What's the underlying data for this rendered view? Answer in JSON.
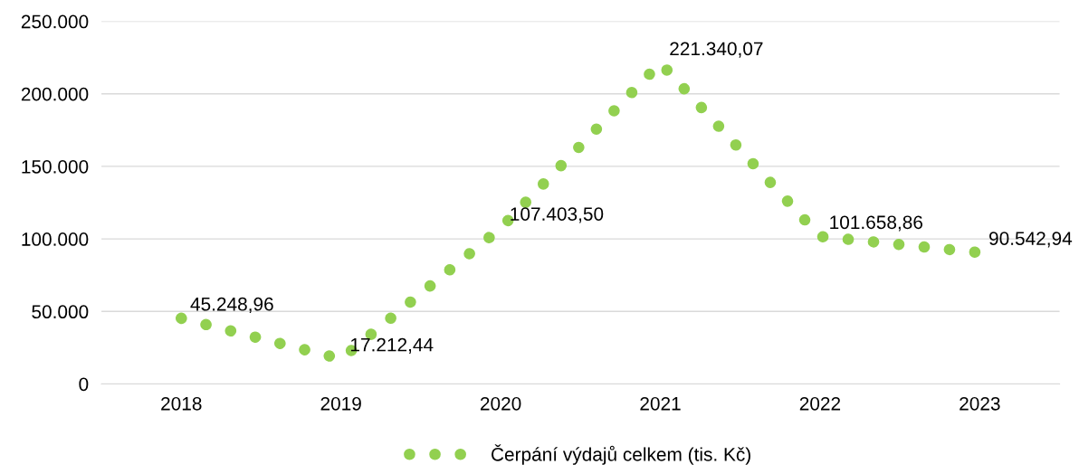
{
  "chart_data": {
    "type": "line",
    "categories": [
      "2018",
      "2019",
      "2020",
      "2021",
      "2022",
      "2023"
    ],
    "series": [
      {
        "name": "Čerpání výdajů celkem (tis. Kč)",
        "color": "#92d050",
        "values": [
          45248.96,
          17212.44,
          107403.5,
          221340.07,
          101658.86,
          90542.94
        ],
        "value_labels": [
          "45.248,96",
          "17.212,44",
          "107.403,50",
          "221.340,07",
          "101.658,86",
          "90.542,94"
        ]
      }
    ],
    "ylim": [
      0,
      250000
    ],
    "yticks": [
      {
        "value": 0,
        "label": "0"
      },
      {
        "value": 50000,
        "label": "50.000"
      },
      {
        "value": 100000,
        "label": "100.000"
      },
      {
        "value": 150000,
        "label": "150.000"
      },
      {
        "value": 200000,
        "label": "200.000"
      },
      {
        "value": 250000,
        "label": "250.000"
      }
    ],
    "grid": "y",
    "legend": "bottom",
    "line_style": "dotted"
  }
}
